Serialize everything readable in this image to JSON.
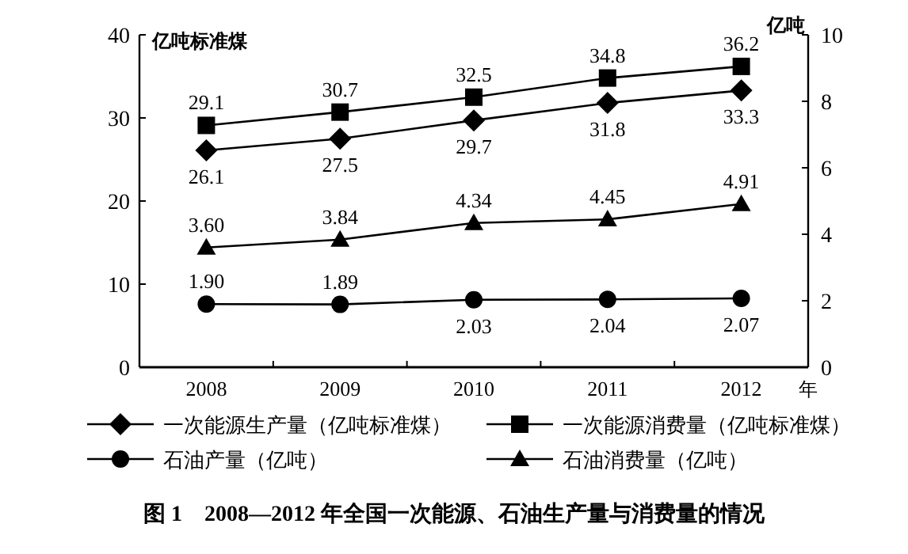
{
  "chart_data": {
    "type": "line",
    "title": "图 1　2008—2012 年全国一次能源、石油生产量与消费量的情况",
    "categories": [
      "2008",
      "2009",
      "2010",
      "2011",
      "2012"
    ],
    "xlabel": "年",
    "ylabel": "亿吨标准煤",
    "y2label": "亿吨",
    "ylim": [
      0,
      40
    ],
    "yticks": [
      0,
      10,
      20,
      30,
      40
    ],
    "y2lim": [
      0,
      10
    ],
    "y2ticks": [
      0,
      2,
      4,
      6,
      8,
      10
    ],
    "legend": "bottom",
    "grid": false,
    "line_style": "solid",
    "series": [
      {
        "name": "一次能源生产量（亿吨标准煤）",
        "color": "#000000",
        "marker": "diamond",
        "values": [
          26.1,
          27.5,
          29.7,
          31.8,
          33.3
        ],
        "value_labels": [
          "26.1",
          "27.5",
          "29.7",
          "31.8",
          "33.3"
        ]
      },
      {
        "name": "一次能源消费量（亿吨标准煤）",
        "color": "#000000",
        "marker": "square",
        "values": [
          29.1,
          30.7,
          32.5,
          34.8,
          36.2
        ],
        "value_labels": [
          "29.1",
          "30.7",
          "32.5",
          "34.8",
          "36.2"
        ]
      },
      {
        "name": "石油产量（亿吨）",
        "color": "#000000",
        "marker": "circle",
        "axis": "y2",
        "values": [
          1.9,
          1.89,
          2.03,
          2.04,
          2.07
        ],
        "value_labels": [
          "1.90",
          "1.89",
          "2.03",
          "2.04",
          "2.07"
        ]
      },
      {
        "name": "石油消费量（亿吨）",
        "color": "#000000",
        "marker": "triangle",
        "axis": "y2",
        "values": [
          3.6,
          3.84,
          4.34,
          4.45,
          4.91
        ],
        "value_labels": [
          "3.60",
          "3.84",
          "4.34",
          "4.45",
          "4.91"
        ]
      }
    ]
  }
}
